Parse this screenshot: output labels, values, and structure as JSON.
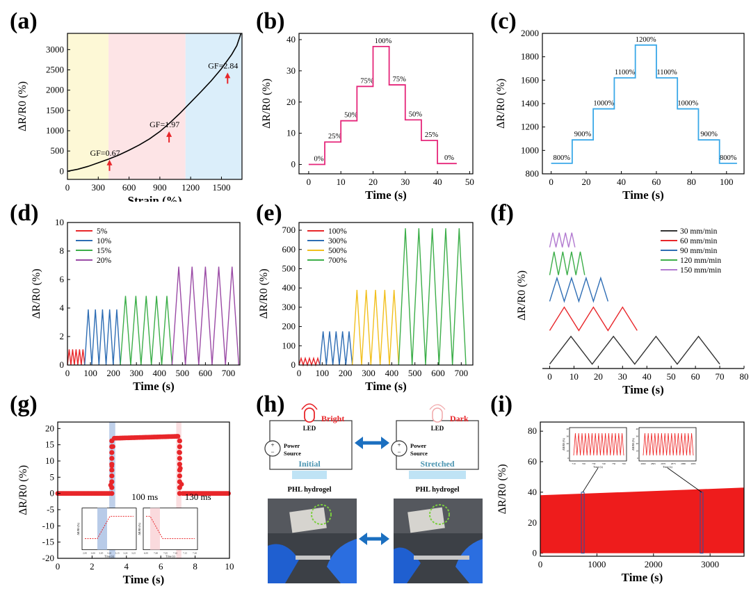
{
  "figure": {
    "panel_labels": [
      "(a)",
      "(b)",
      "(c)",
      "(d)",
      "(e)",
      "(f)",
      "(g)",
      "(h)",
      "(i)"
    ]
  },
  "chart_data": [
    {
      "id": "a",
      "type": "line",
      "title": "",
      "xlabel": "Strain (%)",
      "ylabel": "ΔR/R0 (%)",
      "xlim": [
        0,
        1700
      ],
      "ylim": [
        -200,
        3400
      ],
      "xticks": [
        0,
        300,
        600,
        900,
        1200,
        1500
      ],
      "yticks": [
        0,
        500,
        1000,
        1500,
        2000,
        2500,
        3000
      ],
      "series": [
        {
          "name": "ΔR/R0",
          "color": "#000000",
          "x": [
            0,
            100,
            200,
            300,
            400,
            500,
            600,
            700,
            800,
            900,
            1000,
            1100,
            1200,
            1300,
            1400,
            1500,
            1600,
            1650,
            1690
          ],
          "y": [
            0,
            50,
            120,
            210,
            300,
            400,
            520,
            650,
            800,
            980,
            1200,
            1440,
            1700,
            1960,
            2230,
            2530,
            2880,
            3100,
            3400
          ]
        }
      ],
      "regions": [
        {
          "from": 0,
          "to": 400,
          "color": "#fdf8d6"
        },
        {
          "from": 400,
          "to": 1150,
          "color": "#fde4e6"
        },
        {
          "from": 1150,
          "to": 1700,
          "color": "#dbeefa"
        }
      ],
      "annotations": [
        {
          "text": "GF=0.67",
          "x": 220,
          "y": 250
        },
        {
          "text": "GF=1.97",
          "x": 800,
          "y": 950
        },
        {
          "text": "GF=2.84",
          "x": 1370,
          "y": 2400
        }
      ]
    },
    {
      "id": "b",
      "type": "line",
      "xlabel": "Time (s)",
      "ylabel": "ΔR/R0 (%)",
      "xlim": [
        -3,
        51
      ],
      "ylim": [
        -3,
        42
      ],
      "xticks": [
        0,
        10,
        20,
        30,
        40,
        50
      ],
      "yticks": [
        0,
        10,
        20,
        30,
        40
      ],
      "color": "#e5267a",
      "steps": [
        {
          "t0": 0,
          "t1": 5,
          "v": 0,
          "label": "0%"
        },
        {
          "t0": 5,
          "t1": 10,
          "v": 7.2,
          "label": "25%"
        },
        {
          "t0": 10,
          "t1": 15,
          "v": 14,
          "label": "50%"
        },
        {
          "t0": 15,
          "t1": 20,
          "v": 25,
          "label": "75%"
        },
        {
          "t0": 20,
          "t1": 25,
          "v": 37.8,
          "label": "100%"
        },
        {
          "t0": 25,
          "t1": 30,
          "v": 25.5,
          "label": "75%"
        },
        {
          "t0": 30,
          "t1": 35,
          "v": 14.3,
          "label": "50%"
        },
        {
          "t0": 35,
          "t1": 40,
          "v": 7.7,
          "label": "25%"
        },
        {
          "t0": 40,
          "t1": 46,
          "v": 0.3,
          "label": "0%"
        }
      ]
    },
    {
      "id": "c",
      "type": "line",
      "xlabel": "Time (s)",
      "ylabel": "ΔR/R0 (%)",
      "xlim": [
        -5,
        110
      ],
      "ylim": [
        800,
        2000
      ],
      "xticks": [
        0,
        20,
        40,
        60,
        80,
        100
      ],
      "yticks": [
        800,
        1000,
        1200,
        1400,
        1600,
        1800,
        2000
      ],
      "color": "#3aa8e8",
      "steps": [
        {
          "t0": 0,
          "t1": 12,
          "v": 890,
          "label": "800%"
        },
        {
          "t0": 12,
          "t1": 24,
          "v": 1090,
          "label": "900%"
        },
        {
          "t0": 24,
          "t1": 36,
          "v": 1355,
          "label": "1000%"
        },
        {
          "t0": 36,
          "t1": 48,
          "v": 1620,
          "label": "1100%"
        },
        {
          "t0": 48,
          "t1": 60,
          "v": 1900,
          "label": "1200%"
        },
        {
          "t0": 60,
          "t1": 72,
          "v": 1620,
          "label": "1100%"
        },
        {
          "t0": 72,
          "t1": 84,
          "v": 1355,
          "label": "1000%"
        },
        {
          "t0": 84,
          "t1": 96,
          "v": 1090,
          "label": "900%"
        },
        {
          "t0": 96,
          "t1": 106,
          "v": 890,
          "label": "800%"
        }
      ]
    },
    {
      "id": "d",
      "type": "line",
      "xlabel": "Time (s)",
      "ylabel": "ΔR/R0 (%)",
      "xlim": [
        0,
        750
      ],
      "ylim": [
        0,
        10
      ],
      "xticks": [
        0,
        100,
        200,
        300,
        400,
        500,
        600,
        700
      ],
      "yticks": [
        0,
        2,
        4,
        6,
        8,
        10
      ],
      "series": [
        {
          "name": "5%",
          "color": "#e8262a",
          "start": 0,
          "end": 75,
          "cycles": 5,
          "amp": 1.1
        },
        {
          "name": "10%",
          "color": "#2e6db4",
          "start": 75,
          "end": 230,
          "cycles": 5,
          "amp": 3.9
        },
        {
          "name": "15%",
          "color": "#3cae49",
          "start": 230,
          "end": 455,
          "cycles": 5,
          "amp": 4.85
        },
        {
          "name": "20%",
          "color": "#9a4aa5",
          "start": 455,
          "end": 745,
          "cycles": 5,
          "amp": 6.9
        }
      ]
    },
    {
      "id": "e",
      "type": "line",
      "xlabel": "Time (s)",
      "ylabel": "ΔR/R0 (%)",
      "xlim": [
        0,
        750
      ],
      "ylim": [
        0,
        740
      ],
      "xticks": [
        0,
        100,
        200,
        300,
        400,
        500,
        600,
        700
      ],
      "yticks": [
        0,
        100,
        200,
        300,
        400,
        500,
        600,
        700
      ],
      "series": [
        {
          "name": "100%",
          "color": "#e8262a",
          "start": 0,
          "end": 90,
          "cycles": 5,
          "amp": 35
        },
        {
          "name": "300%",
          "color": "#2e6db4",
          "start": 90,
          "end": 230,
          "cycles": 5,
          "amp": 175
        },
        {
          "name": "500%",
          "color": "#f2c01e",
          "start": 230,
          "end": 430,
          "cycles": 5,
          "amp": 390
        },
        {
          "name": "700%",
          "color": "#3cae49",
          "start": 430,
          "end": 720,
          "cycles": 5,
          "amp": 710
        }
      ]
    },
    {
      "id": "f",
      "type": "line",
      "xlabel": "Time (s)",
      "ylabel": "ΔR/R0 (%)",
      "xlim": [
        -3,
        80
      ],
      "ylim": [
        0,
        10
      ],
      "xticks": [
        0,
        10,
        20,
        30,
        40,
        50,
        60,
        70,
        80
      ],
      "yticks": [],
      "series": [
        {
          "name": "30 mm/min",
          "color": "#333333",
          "period": 17.5,
          "cycles": 4,
          "base": 0.3,
          "amp": 1.9
        },
        {
          "name": "60 mm/min",
          "color": "#e8262a",
          "period": 12,
          "cycles": 3,
          "base": 2.6,
          "amp": 1.6
        },
        {
          "name": "90 mm/min",
          "color": "#2e6db4",
          "period": 6,
          "cycles": 4,
          "base": 4.6,
          "amp": 1.6
        },
        {
          "name": "120 mm/min",
          "color": "#3cae49",
          "period": 3.6,
          "cycles": 4,
          "base": 6.4,
          "amp": 1.6
        },
        {
          "name": "150 mm/min",
          "color": "#b27ad0",
          "period": 2.6,
          "cycles": 4,
          "base": 8.3,
          "amp": 1.0
        }
      ]
    },
    {
      "id": "g",
      "type": "scatter",
      "xlabel": "Time (s)",
      "ylabel": "ΔR/R0 (%)",
      "xlim": [
        0,
        10
      ],
      "ylim": [
        -20,
        22
      ],
      "xticks": [
        0,
        2,
        4,
        6,
        8,
        10
      ],
      "yticks": [
        -20,
        -15,
        -10,
        -5,
        0,
        5,
        10,
        15,
        20
      ],
      "color": "#e8262a",
      "response": {
        "rise_start": 3.05,
        "rise_end": 3.25,
        "plateau_start": 17,
        "plateau_end": 17.6,
        "fall_start": 7.0,
        "fall_end": 7.25
      },
      "highlights": [
        {
          "from": 3.0,
          "to": 3.35,
          "color": "#b8cbe8"
        },
        {
          "from": 6.9,
          "to": 7.2,
          "color": "#fadadd"
        }
      ],
      "annotations": [
        {
          "text": "100 ms",
          "x": 4.3,
          "y": -2
        },
        {
          "text": "130 ms",
          "x": 7.4,
          "y": -2
        }
      ],
      "insets": [
        {
          "ylabel": "ΔR/R0 (%)",
          "xlabel": "Time (s)",
          "xticks": [
            "2.95",
            "3.00",
            "3.05",
            "3.10",
            "3.15",
            "3.20",
            "3.25"
          ],
          "kind": "rise"
        },
        {
          "ylabel": "ΔR/R0 (%)",
          "xlabel": "Time (s)",
          "xticks": [
            "6.95",
            "7.00",
            "7.05",
            "7.10",
            "7.15",
            "7.20"
          ],
          "kind": "fall"
        }
      ]
    },
    {
      "id": "i",
      "type": "line",
      "xlabel": "Time (s)",
      "ylabel": "ΔR/R0 (%)",
      "xlim": [
        0,
        3600
      ],
      "ylim": [
        -2,
        86
      ],
      "xticks": [
        0,
        1000,
        2000,
        3000
      ],
      "yticks": [
        0,
        20,
        40,
        60,
        80
      ],
      "color": "#ee1c1c",
      "band": {
        "top_start": 38,
        "top_end": 43,
        "bottom": 0
      },
      "insets": [
        {
          "ylabel": "ΔR/R0 (%)",
          "xlabel": "Time (s)",
          "xticks": [
            "710",
            "720",
            "730",
            "740",
            "750",
            "760"
          ],
          "yticks": [
            "0",
            "10",
            "20",
            "30",
            "40"
          ],
          "at": 750
        },
        {
          "ylabel": "ΔR/R0 (%)",
          "xlabel": "Time (s)",
          "xticks": [
            "2860",
            "2865",
            "2870",
            "2875",
            "2880",
            "2885"
          ],
          "yticks": [
            "0",
            "10",
            "20",
            "30",
            "40"
          ],
          "at": 2850
        }
      ]
    }
  ],
  "diagram_h": {
    "left": {
      "led": "LED",
      "state": "Bright",
      "power": "Power",
      "source": "Source",
      "gel_state": "Initial",
      "gel": "PHL hydrogel"
    },
    "right": {
      "led": "LED",
      "state": "Dark",
      "power": "Power",
      "source": "Source",
      "gel_state": "Stretched",
      "gel": "PHL hydrogel"
    },
    "plus": "+",
    "minus": "−",
    "colors": {
      "bright": "#e8262a",
      "dark": "#e8262a",
      "gel": "#bfe3f5",
      "arrow": "#1b6fc0",
      "state_text": "#4a94b0"
    }
  }
}
